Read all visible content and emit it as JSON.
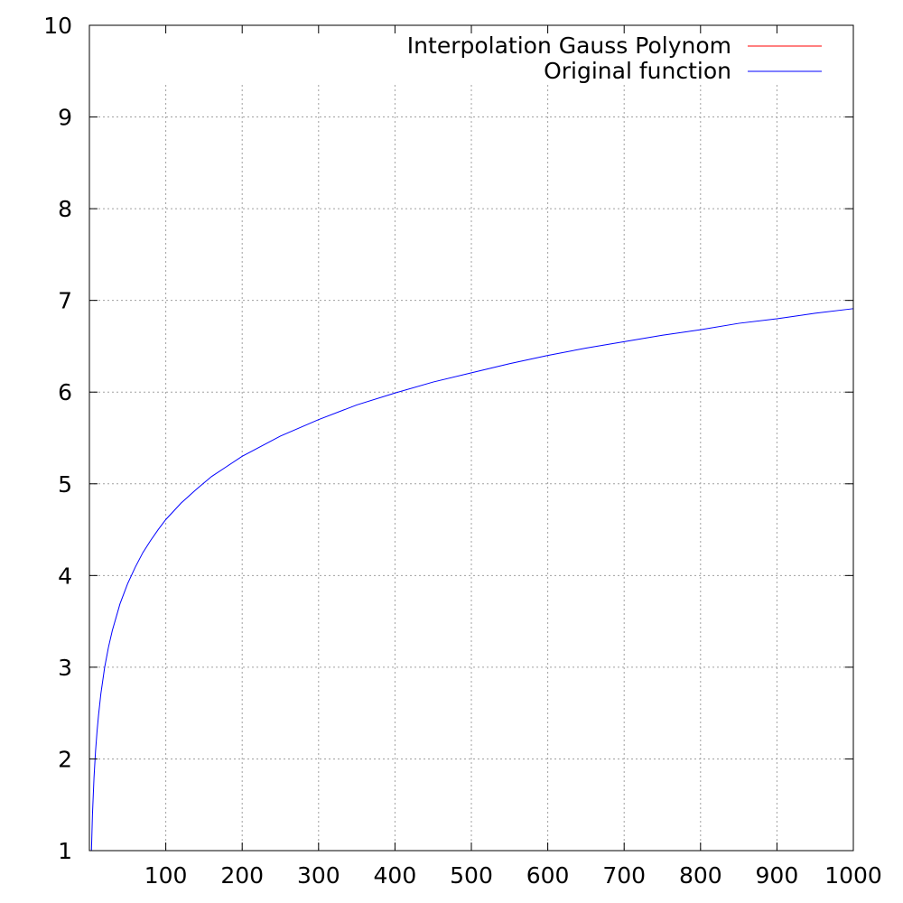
{
  "chart_data": {
    "type": "line",
    "title": "",
    "xlabel": "",
    "ylabel": "",
    "xlim": [
      0,
      1000
    ],
    "ylim": [
      1,
      10
    ],
    "x_ticks": [
      100,
      200,
      300,
      400,
      500,
      600,
      700,
      800,
      900,
      1000
    ],
    "x_tick_labels": [
      "100",
      "200",
      "300",
      "400",
      "500",
      "600",
      "700",
      "800",
      "900",
      "1000"
    ],
    "y_ticks": [
      1,
      2,
      3,
      4,
      5,
      6,
      7,
      8,
      9,
      10
    ],
    "y_tick_labels": [
      "1",
      "2",
      "3",
      "4",
      "5",
      "6",
      "7",
      "8",
      "9",
      "10"
    ],
    "grid": true,
    "legend_position": "top-right",
    "series": [
      {
        "name": "Interpolation Gauss Polynom",
        "color": "#ff0000",
        "x": [],
        "y": []
      },
      {
        "name": "Original function",
        "color": "#0000ff",
        "x": [
          2.7,
          4,
          6,
          8,
          10,
          12,
          15,
          20,
          25,
          30,
          40,
          50,
          60,
          70,
          80,
          90,
          100,
          120,
          140,
          160,
          180,
          200,
          250,
          300,
          350,
          400,
          450,
          500,
          550,
          600,
          650,
          700,
          750,
          800,
          850,
          900,
          950,
          1000
        ],
        "y": [
          0.99,
          1.39,
          1.79,
          2.08,
          2.3,
          2.48,
          2.71,
          3.0,
          3.22,
          3.4,
          3.69,
          3.91,
          4.09,
          4.25,
          4.38,
          4.5,
          4.61,
          4.79,
          4.94,
          5.08,
          5.19,
          5.3,
          5.52,
          5.7,
          5.86,
          5.99,
          6.11,
          6.21,
          6.31,
          6.4,
          6.48,
          6.55,
          6.62,
          6.68,
          6.75,
          6.8,
          6.86,
          6.91
        ]
      }
    ]
  }
}
